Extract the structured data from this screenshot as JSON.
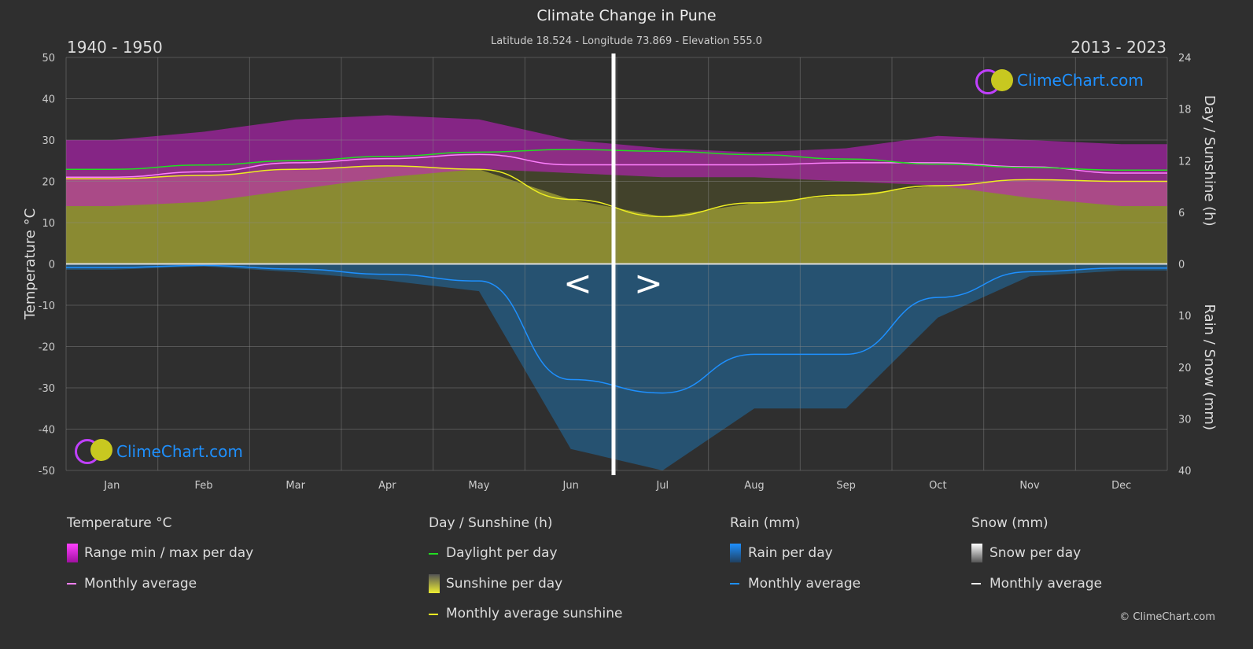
{
  "title": "Climate Change in Pune",
  "subtitle": "Latitude 18.524 - Longitude 73.869 - Elevation 555.0",
  "period_left": "1940 - 1950",
  "period_right": "2013 - 2023",
  "nav": {
    "prev": "<",
    "next": ">"
  },
  "logo_text": "ClimeChart.com",
  "copyright": "© ClimeChart.com",
  "colors": {
    "temp_range": "#c020c0",
    "temp_avg": "#ff80ff",
    "daylight": "#22dd22",
    "sunshine": "#cccc33",
    "sunshine_avg": "#eeee22",
    "rain": "#1f6fa8",
    "rain_avg": "#1e90ff",
    "background": "#2f2f2f"
  },
  "chart_data": {
    "type": "area",
    "categories": [
      "Jan",
      "Feb",
      "Mar",
      "Apr",
      "May",
      "Jun",
      "Jul",
      "Aug",
      "Sep",
      "Oct",
      "Nov",
      "Dec"
    ],
    "ylabel_left": "Temperature °C",
    "ylabel_right_top": "Day / Sunshine (h)",
    "ylabel_right_bottom": "Rain / Snow (mm)",
    "ylim_left": [
      -50,
      50
    ],
    "yticks_left": [
      50,
      40,
      30,
      20,
      10,
      0,
      -10,
      -20,
      -30,
      -40,
      -50
    ],
    "yticks_right_top": [
      24,
      18,
      12,
      6,
      0
    ],
    "yticks_right_bottom": [
      10,
      20,
      30,
      40
    ],
    "grid": true,
    "series": [
      {
        "name": "Range min / max per day",
        "min": [
          14,
          15,
          18,
          21,
          23,
          22,
          21,
          21,
          20,
          19,
          16,
          14
        ],
        "max": [
          30,
          32,
          35,
          36,
          35,
          30,
          28,
          27,
          28,
          31,
          30,
          29
        ]
      },
      {
        "name": "Monthly average",
        "unit": "°C",
        "values": [
          21,
          22.3,
          24.5,
          25.5,
          26.5,
          24,
          24,
          24,
          24.5,
          24.5,
          23.5,
          22
        ]
      },
      {
        "name": "Daylight per day",
        "unit": "h",
        "values": [
          11.0,
          11.5,
          12.0,
          12.5,
          13.0,
          13.3,
          13.1,
          12.7,
          12.2,
          11.6,
          11.2,
          10.9
        ]
      },
      {
        "name": "Monthly average sunshine",
        "unit": "h",
        "values": [
          9.9,
          10.3,
          11.0,
          11.4,
          11.0,
          7.5,
          5.5,
          7.1,
          8.0,
          9.1,
          9.8,
          9.6
        ]
      },
      {
        "name": "Rain monthly average",
        "unit": "mm",
        "values": [
          0.7,
          0.3,
          1.0,
          2.0,
          3.3,
          22.4,
          25.0,
          17.5,
          17.5,
          6.5,
          1.5,
          0.8
        ]
      }
    ]
  },
  "legend": {
    "temp": {
      "header": "Temperature °C",
      "items": [
        "Range min / max per day",
        "Monthly average"
      ]
    },
    "sun": {
      "header": "Day / Sunshine (h)",
      "items": [
        "Daylight per day",
        "Sunshine per day",
        "Monthly average sunshine"
      ]
    },
    "rain": {
      "header": "Rain (mm)",
      "items": [
        "Rain per day",
        "Monthly average"
      ]
    },
    "snow": {
      "header": "Snow (mm)",
      "items": [
        "Snow per day",
        "Monthly average"
      ]
    }
  }
}
